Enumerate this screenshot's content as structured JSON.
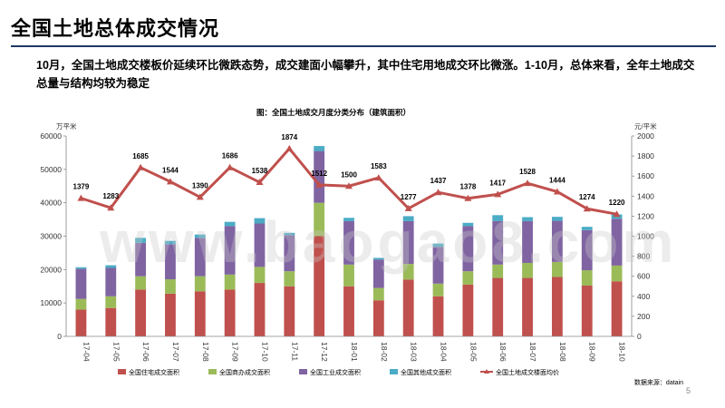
{
  "slide": {
    "title": "全国土地总体成交情况",
    "summary": "10月，全国土地成交楼板价延续环比微跌态势，成交建面小幅攀升，其中住宅用地成交环比微涨。1-10月，总体来看，全年土地成交总量与结构均较为稳定",
    "watermark": "www.baogao8.com",
    "page_number": "5"
  },
  "chart_data": {
    "type": "bar",
    "stacked": true,
    "title": "图：全国土地成交月度分类分布（建筑面积）",
    "left_unit": "万平米",
    "right_unit": "元/平米",
    "source": "数据来源：datain",
    "left_ylim": [
      0,
      60000
    ],
    "left_ticks": [
      0,
      10000,
      20000,
      30000,
      40000,
      50000,
      60000
    ],
    "right_ylim": [
      0,
      2000
    ],
    "right_ticks": [
      0,
      200,
      400,
      600,
      800,
      1000,
      1200,
      1400,
      1600,
      1800,
      2000
    ],
    "categories": [
      "17-04",
      "17-05",
      "17-06",
      "17-07",
      "17-08",
      "17-09",
      "17-10",
      "17-11",
      "17-12",
      "18-01",
      "18-02",
      "18-03",
      "18-04",
      "18-05",
      "18-06",
      "18-07",
      "18-08",
      "18-09",
      "18-10"
    ],
    "series": [
      {
        "name": "全国住宅成交面积",
        "color": "#c0504d",
        "values": [
          8000,
          8500,
          14000,
          12800,
          13500,
          14000,
          16000,
          15000,
          30000,
          15000,
          10800,
          17000,
          12000,
          15500,
          17500,
          17500,
          17800,
          15200,
          16500
        ]
      },
      {
        "name": "全国商办成交面积",
        "color": "#9bbb59",
        "values": [
          3200,
          3500,
          4000,
          4300,
          4500,
          4500,
          4800,
          4500,
          10000,
          6500,
          3700,
          4700,
          3800,
          4000,
          4000,
          4500,
          4500,
          4600,
          4700
        ]
      },
      {
        "name": "全国工业成交面积",
        "color": "#8064a2",
        "values": [
          9000,
          8500,
          10000,
          10500,
          11500,
          14500,
          13000,
          10800,
          15500,
          13000,
          8500,
          12800,
          11000,
          13500,
          13000,
          12500,
          12300,
          12000,
          14000
        ]
      },
      {
        "name": "全国其他成交面积",
        "color": "#4bacc6",
        "values": [
          500,
          800,
          1500,
          1000,
          1000,
          1300,
          1600,
          700,
          1500,
          1000,
          500,
          1500,
          1000,
          1000,
          1800,
          1200,
          1200,
          1000,
          1300
        ]
      }
    ],
    "line": {
      "name": "全国土地成交楼面均价",
      "color": "#c0504d",
      "values": [
        1379,
        1283,
        1685,
        1544,
        1390,
        1686,
        1538,
        1874,
        1512,
        1500,
        1583,
        1277,
        1437,
        1378,
        1417,
        1528,
        1444,
        1274,
        1220
      ]
    }
  }
}
